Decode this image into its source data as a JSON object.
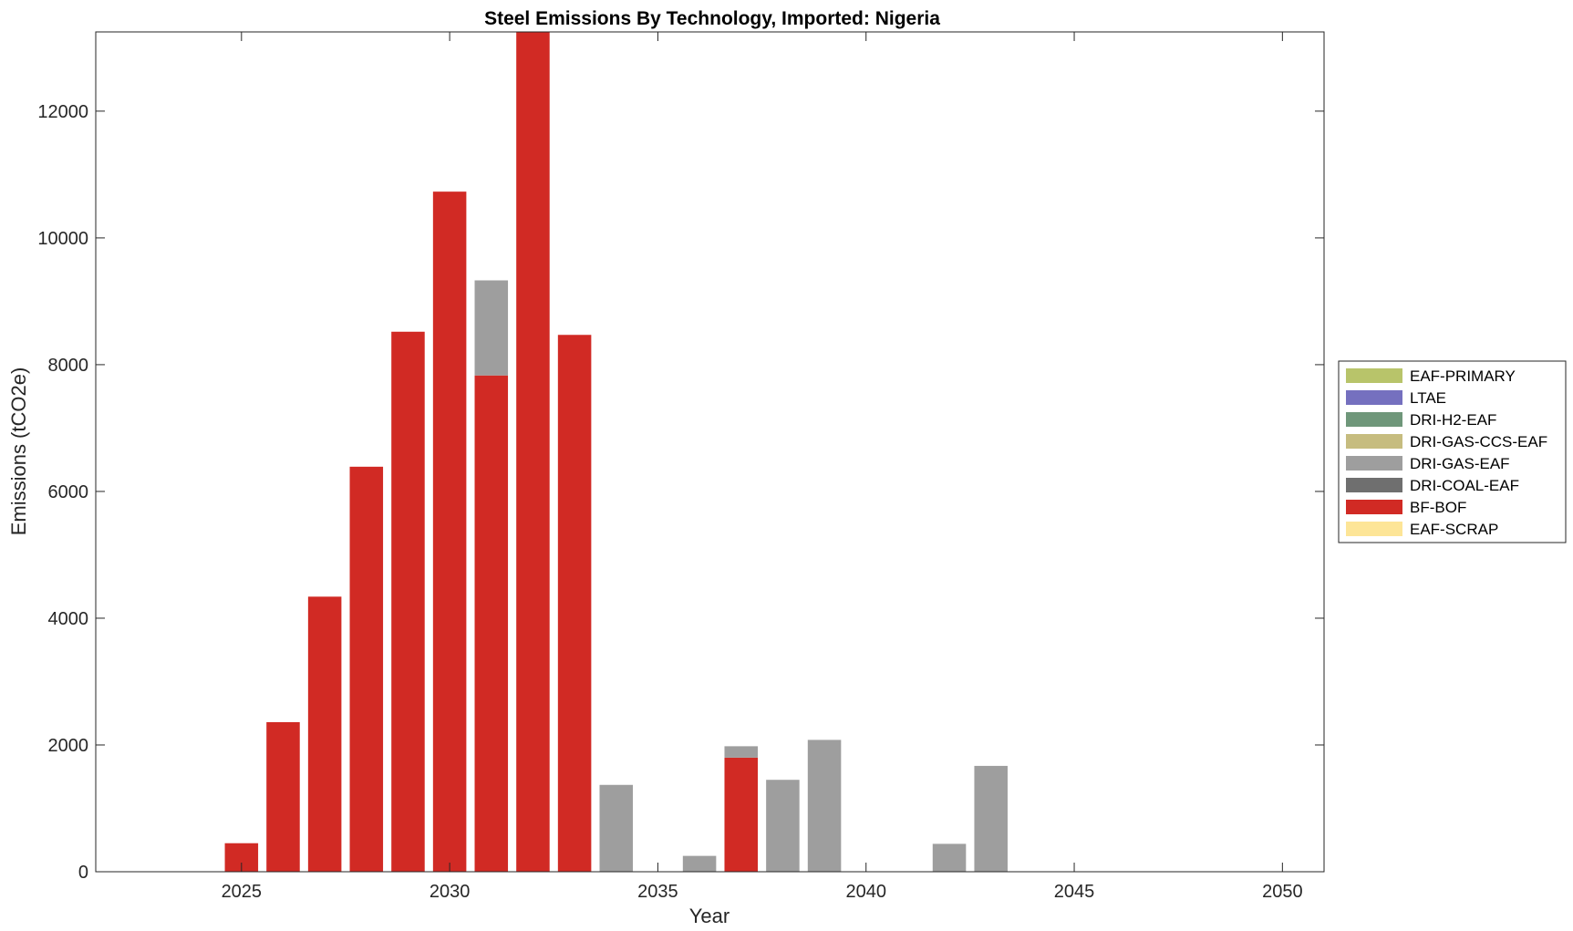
{
  "chart_data": {
    "type": "bar",
    "stacked": true,
    "title": "Steel Emissions By Technology, Imported: Nigeria",
    "xlabel": "Year",
    "ylabel": "Emissions (tCO2e)",
    "xlim": [
      2021.5,
      2051
    ],
    "ylim": [
      0,
      13250
    ],
    "xticks": [
      2025,
      2030,
      2035,
      2040,
      2045,
      2050
    ],
    "yticks": [
      0,
      2000,
      4000,
      6000,
      8000,
      10000,
      12000
    ],
    "grid": false,
    "legend_position": "right",
    "x": [
      2022,
      2023,
      2024,
      2025,
      2026,
      2027,
      2028,
      2029,
      2030,
      2031,
      2032,
      2033,
      2034,
      2035,
      2036,
      2037,
      2038,
      2039,
      2040,
      2041,
      2042,
      2043,
      2044,
      2045,
      2046,
      2047,
      2048,
      2049,
      2050
    ],
    "series": [
      {
        "name": "EAF-PRIMARY",
        "color": "#b8c46a",
        "values": [
          0,
          0,
          0,
          0,
          0,
          0,
          0,
          0,
          0,
          0,
          0,
          0,
          0,
          0,
          0,
          0,
          0,
          0,
          0,
          0,
          0,
          0,
          0,
          0,
          0,
          0,
          0,
          0,
          0
        ]
      },
      {
        "name": "LTAE",
        "color": "#7570bf",
        "values": [
          0,
          0,
          0,
          0,
          0,
          0,
          0,
          0,
          0,
          0,
          0,
          0,
          0,
          0,
          0,
          0,
          0,
          0,
          0,
          0,
          0,
          0,
          0,
          0,
          0,
          0,
          0,
          0,
          0
        ]
      },
      {
        "name": "DRI-H2-EAF",
        "color": "#6f977a",
        "values": [
          0,
          0,
          0,
          0,
          0,
          0,
          0,
          0,
          0,
          0,
          0,
          0,
          0,
          0,
          0,
          0,
          0,
          0,
          0,
          0,
          0,
          0,
          0,
          0,
          0,
          0,
          0,
          0,
          0
        ]
      },
      {
        "name": "DRI-GAS-CCS-EAF",
        "color": "#c6bc7f",
        "values": [
          0,
          0,
          0,
          0,
          0,
          0,
          0,
          0,
          0,
          0,
          0,
          0,
          0,
          0,
          0,
          0,
          0,
          0,
          0,
          0,
          0,
          0,
          0,
          0,
          0,
          0,
          0,
          0,
          0
        ]
      },
      {
        "name": "DRI-GAS-EAF",
        "color": "#9e9e9e",
        "values": [
          0,
          0,
          0,
          0,
          0,
          0,
          0,
          0,
          0,
          1500,
          0,
          0,
          1370,
          0,
          250,
          180,
          1450,
          2080,
          0,
          0,
          440,
          1670,
          0,
          0,
          0,
          0,
          0,
          0,
          0
        ]
      },
      {
        "name": "DRI-COAL-EAF",
        "color": "#6f6f6f",
        "values": [
          0,
          0,
          0,
          0,
          0,
          0,
          0,
          0,
          0,
          0,
          0,
          0,
          0,
          0,
          0,
          0,
          0,
          0,
          0,
          0,
          0,
          0,
          0,
          0,
          0,
          0,
          0,
          0,
          0
        ]
      },
      {
        "name": "BF-BOF",
        "color": "#d12a24",
        "values": [
          0,
          0,
          0,
          450,
          2360,
          4340,
          6390,
          8520,
          10730,
          7830,
          13500,
          8470,
          0,
          0,
          0,
          1800,
          0,
          0,
          0,
          0,
          0,
          0,
          0,
          0,
          0,
          0,
          0,
          0,
          0
        ]
      },
      {
        "name": "EAF-SCRAP",
        "color": "#fde597",
        "values": [
          0,
          0,
          0,
          0,
          0,
          0,
          0,
          0,
          0,
          0,
          0,
          0,
          0,
          0,
          0,
          0,
          0,
          0,
          0,
          0,
          0,
          0,
          0,
          0,
          0,
          0,
          0,
          0,
          0
        ]
      }
    ],
    "stack_order_bottom_to_top": [
      "BF-BOF",
      "DRI-GAS-EAF"
    ]
  }
}
